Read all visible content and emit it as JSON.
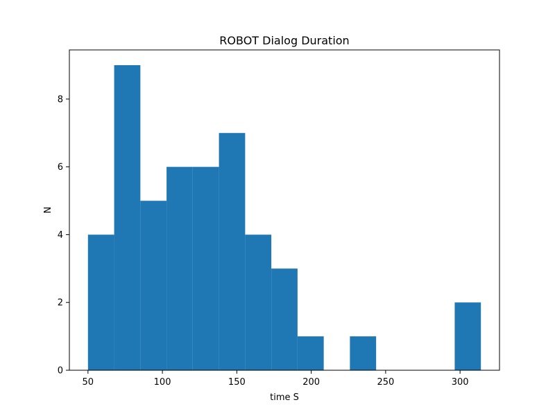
{
  "chart_data": {
    "type": "bar",
    "title": "ROBOT Dialog Duration",
    "xlabel": "time S",
    "ylabel": "N",
    "bins": [
      {
        "start": 50.0,
        "end": 67.6,
        "count": 4
      },
      {
        "start": 67.6,
        "end": 85.2,
        "count": 9
      },
      {
        "start": 85.2,
        "end": 102.8,
        "count": 5
      },
      {
        "start": 102.8,
        "end": 120.4,
        "count": 6
      },
      {
        "start": 120.4,
        "end": 138.0,
        "count": 6
      },
      {
        "start": 138.0,
        "end": 155.6,
        "count": 7
      },
      {
        "start": 155.6,
        "end": 173.2,
        "count": 4
      },
      {
        "start": 173.2,
        "end": 190.8,
        "count": 3
      },
      {
        "start": 190.8,
        "end": 208.4,
        "count": 1
      },
      {
        "start": 208.4,
        "end": 226.0,
        "count": 0
      },
      {
        "start": 226.0,
        "end": 243.6,
        "count": 1
      },
      {
        "start": 243.6,
        "end": 261.2,
        "count": 0
      },
      {
        "start": 261.2,
        "end": 278.8,
        "count": 0
      },
      {
        "start": 278.8,
        "end": 296.4,
        "count": 0
      },
      {
        "start": 296.4,
        "end": 314.0,
        "count": 2
      }
    ],
    "xlim": [
      37.5,
      326.5
    ],
    "ylim": [
      0,
      9.45
    ],
    "xticks": [
      50,
      100,
      150,
      200,
      250,
      300
    ],
    "yticks": [
      0,
      2,
      4,
      6,
      8
    ],
    "grid": false,
    "bar_color": "#1f77b4"
  }
}
